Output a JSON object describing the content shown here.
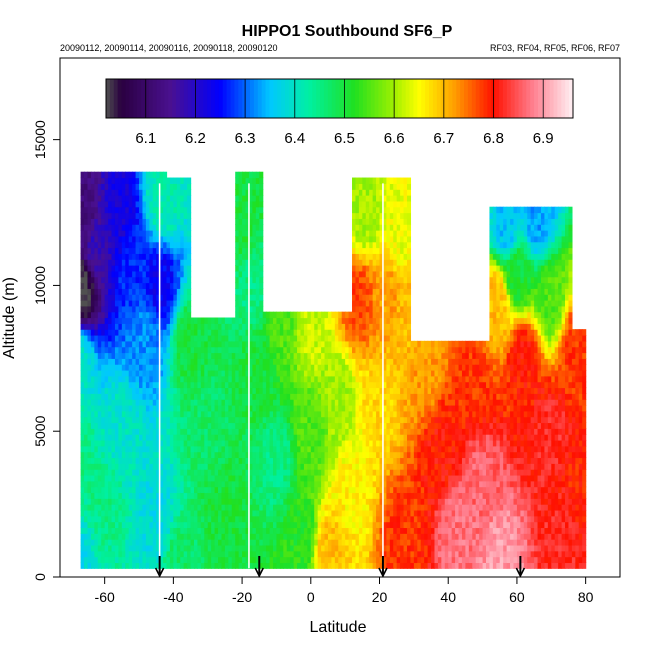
{
  "chart_data": {
    "type": "heatmap",
    "title": "HIPPO1 Southbound SF6_P",
    "subtitle_left": "20090112, 20090114, 20090116, 20090118, 20090120",
    "subtitle_right": "RF03, RF04, RF05, RF06, RF07",
    "xlabel": "Latitude",
    "ylabel": "Altitude (m)",
    "xlim": [
      -73,
      90
    ],
    "ylim": [
      0,
      17800
    ],
    "xticks": [
      -60,
      -40,
      -20,
      0,
      20,
      40,
      60,
      80
    ],
    "xtick_labels": [
      "-60",
      "-40",
      "-20",
      "0",
      "20",
      "40",
      "60",
      "80"
    ],
    "yticks": [
      0,
      5000,
      10000,
      15000
    ],
    "ytick_labels": [
      "0",
      "5000",
      "10000",
      "15000"
    ],
    "colorbar": {
      "range": [
        6.02,
        6.96
      ],
      "ticks": [
        6.1,
        6.2,
        6.3,
        6.4,
        6.5,
        6.6,
        6.7,
        6.8,
        6.9
      ],
      "tick_labels": [
        "6.1",
        "6.2",
        "6.3",
        "6.4",
        "6.5",
        "6.6",
        "6.7",
        "6.8",
        "6.9"
      ],
      "stops": [
        {
          "v": 6.02,
          "c": "#505050"
        },
        {
          "v": 6.05,
          "c": "#2a0040"
        },
        {
          "v": 6.15,
          "c": "#4a1090"
        },
        {
          "v": 6.25,
          "c": "#0000ff"
        },
        {
          "v": 6.35,
          "c": "#00c8ff"
        },
        {
          "v": 6.43,
          "c": "#00f0a0"
        },
        {
          "v": 6.52,
          "c": "#20e020"
        },
        {
          "v": 6.6,
          "c": "#a0f000"
        },
        {
          "v": 6.65,
          "c": "#ffff00"
        },
        {
          "v": 6.72,
          "c": "#ffa000"
        },
        {
          "v": 6.8,
          "c": "#ff1000"
        },
        {
          "v": 6.88,
          "c": "#ff8090"
        },
        {
          "v": 6.96,
          "c": "#fff0f4"
        }
      ]
    },
    "profile_markers_latitude": [
      -44,
      -15,
      21,
      61
    ],
    "flight_tracks_latitude": [
      -44,
      -18,
      21
    ],
    "segments": [
      {
        "lat": [
          -67,
          -42
        ],
        "alt": [
          0,
          13800
        ]
      },
      {
        "lat": [
          -42,
          -35
        ],
        "alt": [
          0,
          13600
        ]
      },
      {
        "lat": [
          -35,
          -22
        ],
        "alt": [
          0,
          8900
        ]
      },
      {
        "lat": [
          -22,
          -14
        ],
        "alt": [
          0,
          13800
        ]
      },
      {
        "lat": [
          -14,
          12
        ],
        "alt": [
          0,
          9000
        ]
      },
      {
        "lat": [
          12,
          29
        ],
        "alt": [
          0,
          13600
        ]
      },
      {
        "lat": [
          29,
          52
        ],
        "alt": [
          0,
          8000
        ]
      },
      {
        "lat": [
          52,
          76
        ],
        "alt": [
          0,
          12600
        ]
      },
      {
        "lat": [
          76,
          80
        ],
        "alt": [
          0,
          8500
        ]
      }
    ],
    "anchors": [
      {
        "lat": -68,
        "alt": 500,
        "v": 6.38
      },
      {
        "lat": -68,
        "alt": 4000,
        "v": 6.45
      },
      {
        "lat": -68,
        "alt": 7500,
        "v": 6.4
      },
      {
        "lat": -67,
        "alt": 9800,
        "v": 6.02
      },
      {
        "lat": -66,
        "alt": 12500,
        "v": 6.12
      },
      {
        "lat": -62,
        "alt": 11500,
        "v": 6.18
      },
      {
        "lat": -56,
        "alt": 12500,
        "v": 6.22
      },
      {
        "lat": -52,
        "alt": 10500,
        "v": 6.27
      },
      {
        "lat": -48,
        "alt": 8200,
        "v": 6.32
      },
      {
        "lat": -44,
        "alt": 10000,
        "v": 6.24
      },
      {
        "lat": -43,
        "alt": 13000,
        "v": 6.42
      },
      {
        "lat": -55,
        "alt": 5000,
        "v": 6.4
      },
      {
        "lat": -60,
        "alt": 2500,
        "v": 6.45
      },
      {
        "lat": -45,
        "alt": 2000,
        "v": 6.38
      },
      {
        "lat": -38,
        "alt": 500,
        "v": 6.47
      },
      {
        "lat": -35,
        "alt": 8000,
        "v": 6.5
      },
      {
        "lat": -30,
        "alt": 5000,
        "v": 6.47
      },
      {
        "lat": -25,
        "alt": 2500,
        "v": 6.5
      },
      {
        "lat": -20,
        "alt": 12000,
        "v": 6.5
      },
      {
        "lat": -17,
        "alt": 10000,
        "v": 6.45
      },
      {
        "lat": -15,
        "alt": 7000,
        "v": 6.5
      },
      {
        "lat": -10,
        "alt": 4000,
        "v": 6.45
      },
      {
        "lat": -8,
        "alt": 8500,
        "v": 6.55
      },
      {
        "lat": 0,
        "alt": 8500,
        "v": 6.62
      },
      {
        "lat": 0,
        "alt": 5000,
        "v": 6.55
      },
      {
        "lat": -2,
        "alt": 1500,
        "v": 6.52
      },
      {
        "lat": 5,
        "alt": 1000,
        "v": 6.7
      },
      {
        "lat": 8,
        "alt": 6000,
        "v": 6.6
      },
      {
        "lat": 12,
        "alt": 3000,
        "v": 6.66
      },
      {
        "lat": 14,
        "alt": 9500,
        "v": 6.77
      },
      {
        "lat": 16,
        "alt": 12500,
        "v": 6.6
      },
      {
        "lat": 20,
        "alt": 6000,
        "v": 6.68
      },
      {
        "lat": 22,
        "alt": 9500,
        "v": 6.72
      },
      {
        "lat": 26,
        "alt": 12000,
        "v": 6.64
      },
      {
        "lat": 28,
        "alt": 8500,
        "v": 6.7
      },
      {
        "lat": 27,
        "alt": 1500,
        "v": 6.78
      },
      {
        "lat": 33,
        "alt": 7000,
        "v": 6.72
      },
      {
        "lat": 38,
        "alt": 4500,
        "v": 6.8
      },
      {
        "lat": 43,
        "alt": 1500,
        "v": 6.87
      },
      {
        "lat": 48,
        "alt": 6500,
        "v": 6.78
      },
      {
        "lat": 50,
        "alt": 3500,
        "v": 6.86
      },
      {
        "lat": 55,
        "alt": 700,
        "v": 6.9
      },
      {
        "lat": 54,
        "alt": 9500,
        "v": 6.7
      },
      {
        "lat": 57,
        "alt": 12000,
        "v": 6.35
      },
      {
        "lat": 60,
        "alt": 10500,
        "v": 6.5
      },
      {
        "lat": 62,
        "alt": 7500,
        "v": 6.8
      },
      {
        "lat": 66,
        "alt": 12300,
        "v": 6.33
      },
      {
        "lat": 70,
        "alt": 9500,
        "v": 6.55
      },
      {
        "lat": 70,
        "alt": 5000,
        "v": 6.82
      },
      {
        "lat": 74,
        "alt": 1500,
        "v": 6.82
      },
      {
        "lat": 77,
        "alt": 8000,
        "v": 6.78
      },
      {
        "lat": 78,
        "alt": 3000,
        "v": 6.79
      }
    ]
  }
}
